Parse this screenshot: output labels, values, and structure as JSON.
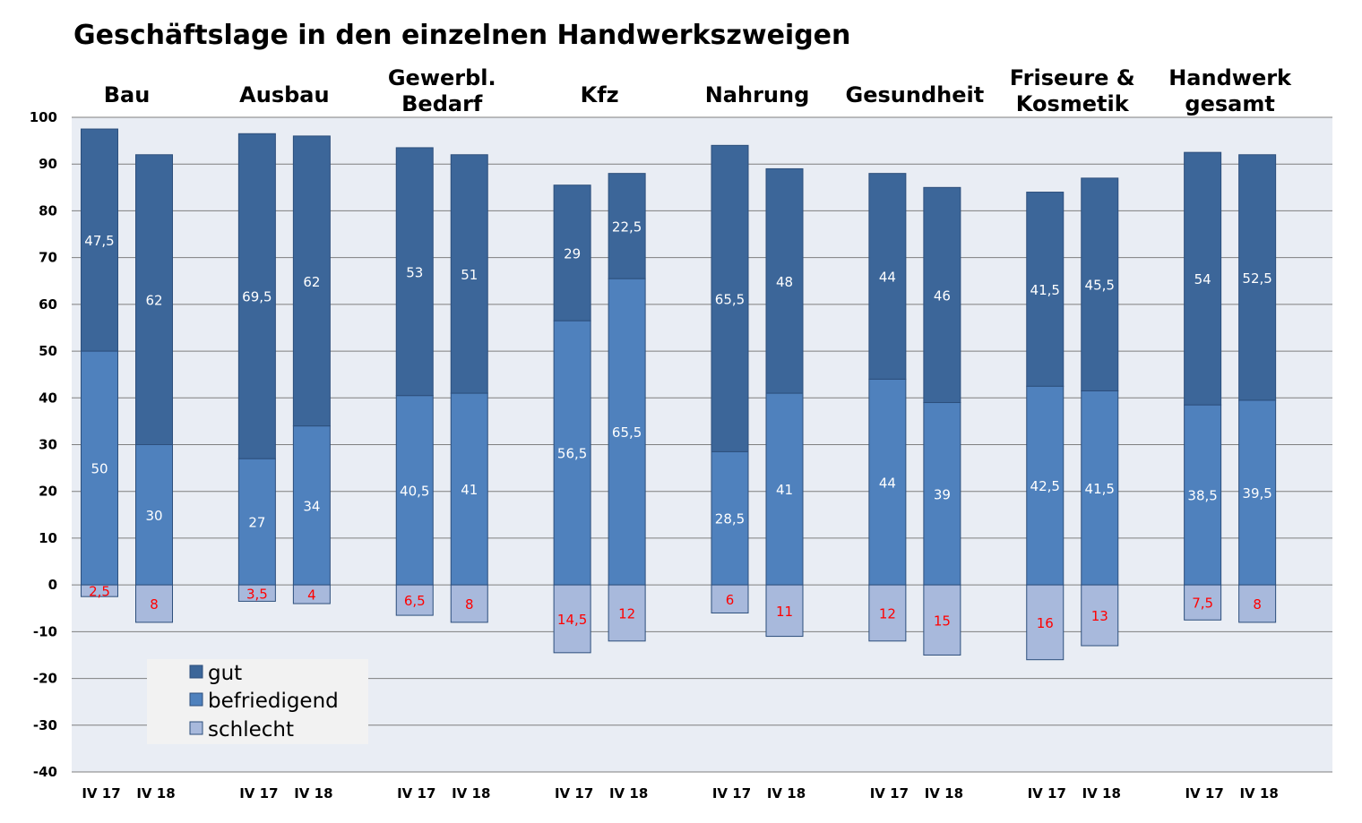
{
  "colors": {
    "gut": "#3c6699",
    "befriedigend": "#4f81bd",
    "schlecht": "#a8b9dc",
    "plot_bg": "#e9edf4",
    "gridline": "#7f7f7f",
    "label_light": "#ffffff",
    "label_negative": "#ff0000",
    "legend_bg": "#f2f2f2"
  },
  "chart_data": {
    "type": "bar",
    "stacked": true,
    "title": "Geschäftslage in den einzelnen Handwerkszweigen",
    "ylim": [
      -40,
      100
    ],
    "yticks": [
      100,
      90,
      80,
      70,
      60,
      50,
      40,
      30,
      20,
      10,
      0,
      -10,
      -20,
      -30,
      -40
    ],
    "grid": true,
    "legend_position": "bottom-left",
    "series_names": [
      "gut",
      "befriedigend",
      "schlecht"
    ],
    "groups": [
      {
        "label_lines": [
          "Bau"
        ],
        "bars": [
          {
            "x": "IV 17",
            "befriedigend": 50,
            "gut": 47.5,
            "schlecht": 2.5,
            "labels": [
              "50",
              "47,5",
              "2,5"
            ]
          },
          {
            "x": "IV 18",
            "befriedigend": 30,
            "gut": 62,
            "schlecht": 8,
            "labels": [
              "30",
              "62",
              "8"
            ]
          }
        ]
      },
      {
        "label_lines": [
          "Ausbau"
        ],
        "bars": [
          {
            "x": "IV 17",
            "befriedigend": 27,
            "gut": 69.5,
            "schlecht": 3.5,
            "labels": [
              "27",
              "69,5",
              "3,5"
            ]
          },
          {
            "x": "IV 18",
            "befriedigend": 34,
            "gut": 62,
            "schlecht": 4,
            "labels": [
              "34",
              "62",
              "4"
            ]
          }
        ]
      },
      {
        "label_lines": [
          "Gewerbl.",
          "Bedarf"
        ],
        "bars": [
          {
            "x": "IV 17",
            "befriedigend": 40.5,
            "gut": 53,
            "schlecht": 6.5,
            "labels": [
              "40,5",
              "53",
              "6,5"
            ]
          },
          {
            "x": "IV 18",
            "befriedigend": 41,
            "gut": 51,
            "schlecht": 8,
            "labels": [
              "41",
              "51",
              "8"
            ]
          }
        ]
      },
      {
        "label_lines": [
          "Kfz"
        ],
        "bars": [
          {
            "x": "IV 17",
            "befriedigend": 56.5,
            "gut": 29,
            "schlecht": 14.5,
            "labels": [
              "56,5",
              "29",
              "14,5"
            ]
          },
          {
            "x": "IV 18",
            "befriedigend": 65.5,
            "gut": 22.5,
            "schlecht": 12,
            "labels": [
              "65,5",
              "22,5",
              "12"
            ]
          }
        ]
      },
      {
        "label_lines": [
          "Nahrung"
        ],
        "bars": [
          {
            "x": "IV 17",
            "befriedigend": 28.5,
            "gut": 65.5,
            "schlecht": 6,
            "labels": [
              "28,5",
              "65,5",
              "6"
            ]
          },
          {
            "x": "IV 18",
            "befriedigend": 41,
            "gut": 48,
            "schlecht": 11,
            "labels": [
              "41",
              "48",
              "11"
            ]
          }
        ]
      },
      {
        "label_lines": [
          "Gesundheit"
        ],
        "bars": [
          {
            "x": "IV 17",
            "befriedigend": 44,
            "gut": 44,
            "schlecht": 12,
            "labels": [
              "44",
              "44",
              "12"
            ]
          },
          {
            "x": "IV 18",
            "befriedigend": 39,
            "gut": 46,
            "schlecht": 15,
            "labels": [
              "39",
              "46",
              "15"
            ]
          }
        ]
      },
      {
        "label_lines": [
          "Friseure &",
          "Kosmetik"
        ],
        "bars": [
          {
            "x": "IV 17",
            "befriedigend": 42.5,
            "gut": 41.5,
            "schlecht": 16,
            "labels": [
              "42,5",
              "41,5",
              "16"
            ]
          },
          {
            "x": "IV 18",
            "befriedigend": 41.5,
            "gut": 45.5,
            "schlecht": 13,
            "labels": [
              "41,5",
              "45,5",
              "13"
            ]
          }
        ]
      },
      {
        "label_lines": [
          "Handwerk",
          "gesamt"
        ],
        "bars": [
          {
            "x": "IV 17",
            "befriedigend": 38.5,
            "gut": 54,
            "schlecht": 7.5,
            "labels": [
              "38,5",
              "54",
              "7,5"
            ]
          },
          {
            "x": "IV 18",
            "befriedigend": 39.5,
            "gut": 52.5,
            "schlecht": 8,
            "labels": [
              "39,5",
              "52,5",
              "8"
            ]
          }
        ]
      }
    ]
  }
}
